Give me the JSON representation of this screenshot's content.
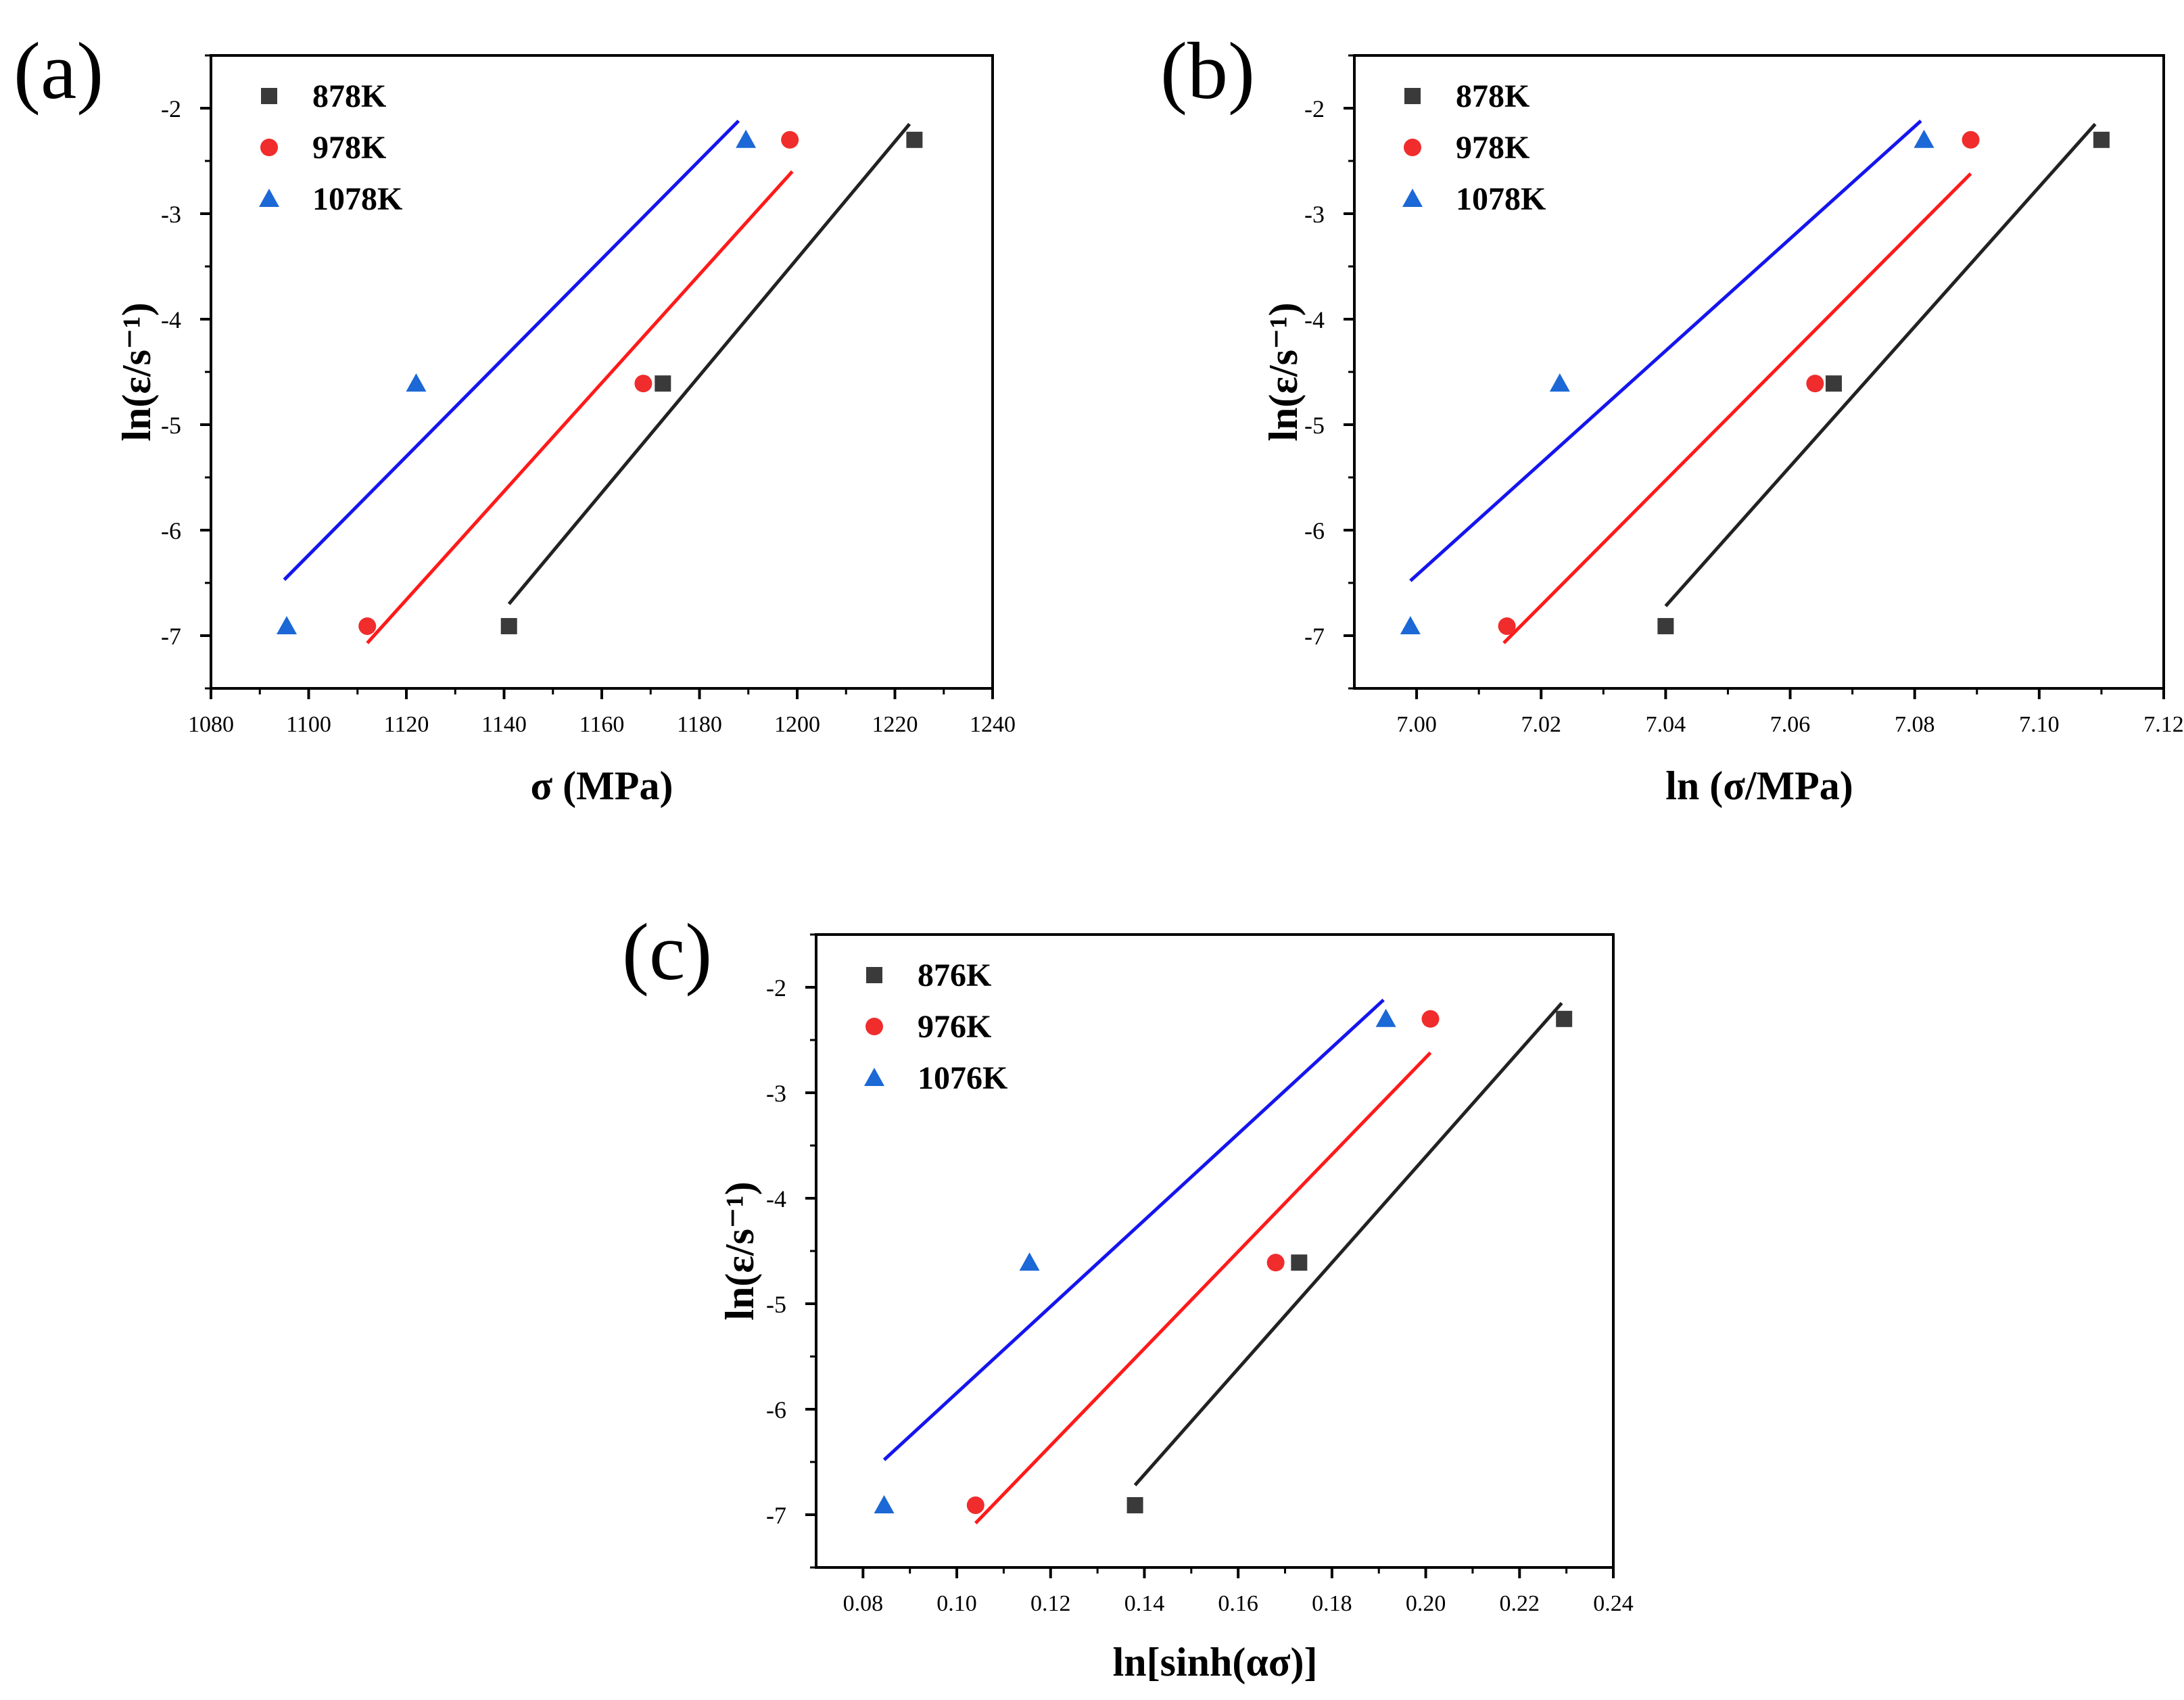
{
  "colors": {
    "black_series": "#3a3a3a",
    "red_series": "#f02c2c",
    "blue_series": "#1b68d6",
    "black_line": "#222222",
    "red_line": "#ff1a1a",
    "blue_line": "#1515ee",
    "axis": "#000000"
  },
  "chart_data": [
    {
      "type": "scatter",
      "panel_label": "(a)",
      "xlabel": "σ (MPa)",
      "ylabel": "ln(ε/s⁻¹)",
      "xlim": [
        1080,
        1240
      ],
      "ylim": [
        -7.5,
        -1.5
      ],
      "xticks": [
        1080,
        1100,
        1120,
        1140,
        1160,
        1180,
        1200,
        1220,
        1240
      ],
      "xtick_labels": [
        "1080",
        "1100",
        "1120",
        "1140",
        "1160",
        "1180",
        "1200",
        "1220",
        "1240"
      ],
      "yticks": [
        -7,
        -6,
        -5,
        -4,
        -3,
        -2
      ],
      "ytick_labels": [
        "-7",
        "-6",
        "-5",
        "-4",
        "-3",
        "-2"
      ],
      "legend_position": "top-left",
      "series": [
        {
          "name": "878K",
          "marker": "square",
          "color": "#3a3a3a",
          "x": [
            1141,
            1172.5,
            1224
          ],
          "y": [
            -6.91,
            -4.61,
            -2.3
          ],
          "fit": {
            "x": [
              1141,
              1223
            ],
            "y": [
              -6.7,
              -2.15
            ]
          }
        },
        {
          "name": "978K",
          "marker": "circle",
          "color": "#f02c2c",
          "x": [
            1112,
            1168.5,
            1198.5
          ],
          "y": [
            -6.91,
            -4.61,
            -2.3
          ],
          "fit": {
            "x": [
              1112,
              1199
            ],
            "y": [
              -7.07,
              -2.6
            ]
          }
        },
        {
          "name": "1078K",
          "marker": "triangle",
          "color": "#1b68d6",
          "x": [
            1095.5,
            1122,
            1189.5
          ],
          "y": [
            -6.91,
            -4.61,
            -2.3
          ],
          "fit": {
            "x": [
              1095,
              1188
            ],
            "y": [
              -6.47,
              -2.12
            ]
          }
        }
      ]
    },
    {
      "type": "scatter",
      "panel_label": "(b)",
      "xlabel": "ln (σ/MPa)",
      "ylabel": "ln(ε/s⁻¹)",
      "xlim": [
        6.99,
        7.12
      ],
      "ylim": [
        -7.5,
        -1.5
      ],
      "xticks": [
        7.0,
        7.02,
        7.04,
        7.06,
        7.08,
        7.1,
        7.12
      ],
      "xtick_labels": [
        "7.00",
        "7.02",
        "7.04",
        "7.06",
        "7.08",
        "7.10",
        "7.12"
      ],
      "yticks": [
        -7,
        -6,
        -5,
        -4,
        -3,
        -2
      ],
      "ytick_labels": [
        "-7",
        "-6",
        "-5",
        "-4",
        "-3",
        "-2"
      ],
      "legend_position": "top-left",
      "series": [
        {
          "name": "878K",
          "marker": "square",
          "color": "#3a3a3a",
          "x": [
            7.04,
            7.067,
            7.11
          ],
          "y": [
            -6.91,
            -4.61,
            -2.3
          ],
          "fit": {
            "x": [
              7.04,
              7.109
            ],
            "y": [
              -6.72,
              -2.15
            ]
          }
        },
        {
          "name": "978K",
          "marker": "circle",
          "color": "#f02c2c",
          "x": [
            7.0145,
            7.064,
            7.089
          ],
          "y": [
            -6.91,
            -4.61,
            -2.3
          ],
          "fit": {
            "x": [
              7.014,
              7.089
            ],
            "y": [
              -7.07,
              -2.62
            ]
          }
        },
        {
          "name": "1078K",
          "marker": "triangle",
          "color": "#1b68d6",
          "x": [
            6.999,
            7.023,
            7.0815
          ],
          "y": [
            -6.91,
            -4.61,
            -2.3
          ],
          "fit": {
            "x": [
              6.999,
              7.081
            ],
            "y": [
              -6.48,
              -2.12
            ]
          }
        }
      ]
    },
    {
      "type": "scatter",
      "panel_label": "(c)",
      "xlabel": "ln[sinh(ασ)]",
      "ylabel": "ln(ε/s⁻¹)",
      "xlim": [
        0.07,
        0.24
      ],
      "ylim": [
        -7.5,
        -1.5
      ],
      "xticks": [
        0.08,
        0.1,
        0.12,
        0.14,
        0.16,
        0.18,
        0.2,
        0.22,
        0.24
      ],
      "xtick_labels": [
        "0.08",
        "0.10",
        "0.12",
        "0.14",
        "0.16",
        "0.18",
        "0.20",
        "0.22",
        "0.24"
      ],
      "yticks": [
        -7,
        -6,
        -5,
        -4,
        -3,
        -2
      ],
      "ytick_labels": [
        "-7",
        "-6",
        "-5",
        "-4",
        "-3",
        "-2"
      ],
      "legend_position": "top-left",
      "series": [
        {
          "name": "876K",
          "marker": "square",
          "color": "#3a3a3a",
          "x": [
            0.138,
            0.173,
            0.2295
          ],
          "y": [
            -6.91,
            -4.61,
            -2.3
          ],
          "fit": {
            "x": [
              0.138,
              0.229
            ],
            "y": [
              -6.72,
              -2.15
            ]
          }
        },
        {
          "name": "976K",
          "marker": "circle",
          "color": "#f02c2c",
          "x": [
            0.104,
            0.168,
            0.201
          ],
          "y": [
            -6.91,
            -4.61,
            -2.3
          ],
          "fit": {
            "x": [
              0.104,
              0.201
            ],
            "y": [
              -7.08,
              -2.62
            ]
          }
        },
        {
          "name": "1076K",
          "marker": "triangle",
          "color": "#1b68d6",
          "x": [
            0.0845,
            0.1155,
            0.1915
          ],
          "y": [
            -6.91,
            -4.61,
            -2.3
          ],
          "fit": {
            "x": [
              0.0845,
              0.191
            ],
            "y": [
              -6.48,
              -2.12
            ]
          }
        }
      ]
    }
  ]
}
